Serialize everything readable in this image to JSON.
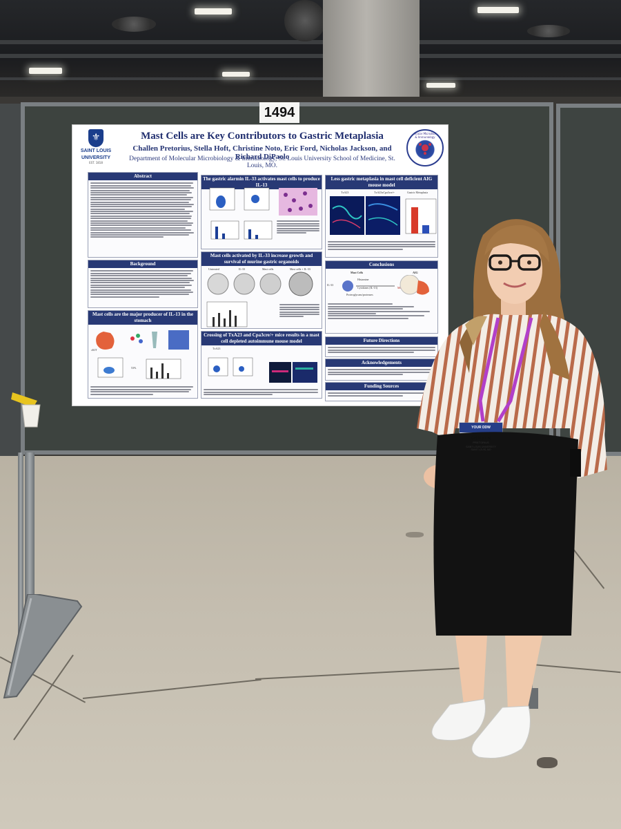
{
  "booth": {
    "number": "1494"
  },
  "poster": {
    "title": "Mast Cells are Key Contributors to Gastric Metaplasia",
    "authors": "Challen Pretorius, Stella Hoft, Christine Noto, Eric Ford, Nicholas Jackson, and Richard DiPaolo",
    "department": "Department of Molecular Microbiology & Immunology, St. Louis University School of Medicine, St. Louis, MO.",
    "logo_left": {
      "line1": "SAINT LOUIS",
      "line2": "UNIVERSITY",
      "est": "EST. 1818",
      "icon": "fleur-de-lis-shield-icon"
    },
    "logo_right": {
      "text": "Molecular Microbiology & Immunology",
      "icon": "microbe-globe-icon"
    },
    "sections": {
      "abstract": "Abstract",
      "background": "Background",
      "mast_cells_il13": "Mast cells are the major producer of IL-13 in the stomach",
      "il33": "The gastric alarmin IL-33 activates mast cells to produce IL-13",
      "organoids": "Mast cells activated by IL-33 increase growth and survival of murine gastric organoids",
      "crossing": "Crossing of TxA23 and Cpa3cre/+ mice results in a mast cell depleted autoimmune mouse model",
      "less_metaplasia": "Less gastric metaplasia in mast cell deficient AIG mouse model",
      "conclusions": "Conclusions",
      "future": "Future Directions",
      "acknowledgements": "Acknowledgements",
      "funding": "Funding Sources"
    },
    "labels": {
      "txa23": "TxA23",
      "txa23cpa3": "TxA23xCpa3cre/+",
      "gastric_metaplasia": "Gastric Metaplasia",
      "mast_cells": "Mast Cells",
      "aig": "AIG",
      "histamine": "Histamine",
      "il33": "IL-33",
      "cytokines": "Cytokines (IL-13)",
      "proteases": "Proteoglycans/proteases",
      "metaplasia": "Metaplasia",
      "untreated": "Untreated",
      "il33_short": "IL-33",
      "mast_cells_short": "Mast cells",
      "mast_il33": "Mast cells + IL-33",
      "ckit": "cKIT",
      "pct": "53%"
    }
  },
  "badge": {
    "name": "CHALLEN",
    "surname": "PRETORIUS",
    "org": "SAINT LOUIS UNIVERSITY",
    "city": "SAINT LOUIS, MO",
    "header": "YOUR DDW"
  },
  "colors": {
    "board": "#3d433f",
    "poster_accent": "#283975",
    "lanyard": "#b23fc9",
    "floor": "#c4bdaf"
  }
}
